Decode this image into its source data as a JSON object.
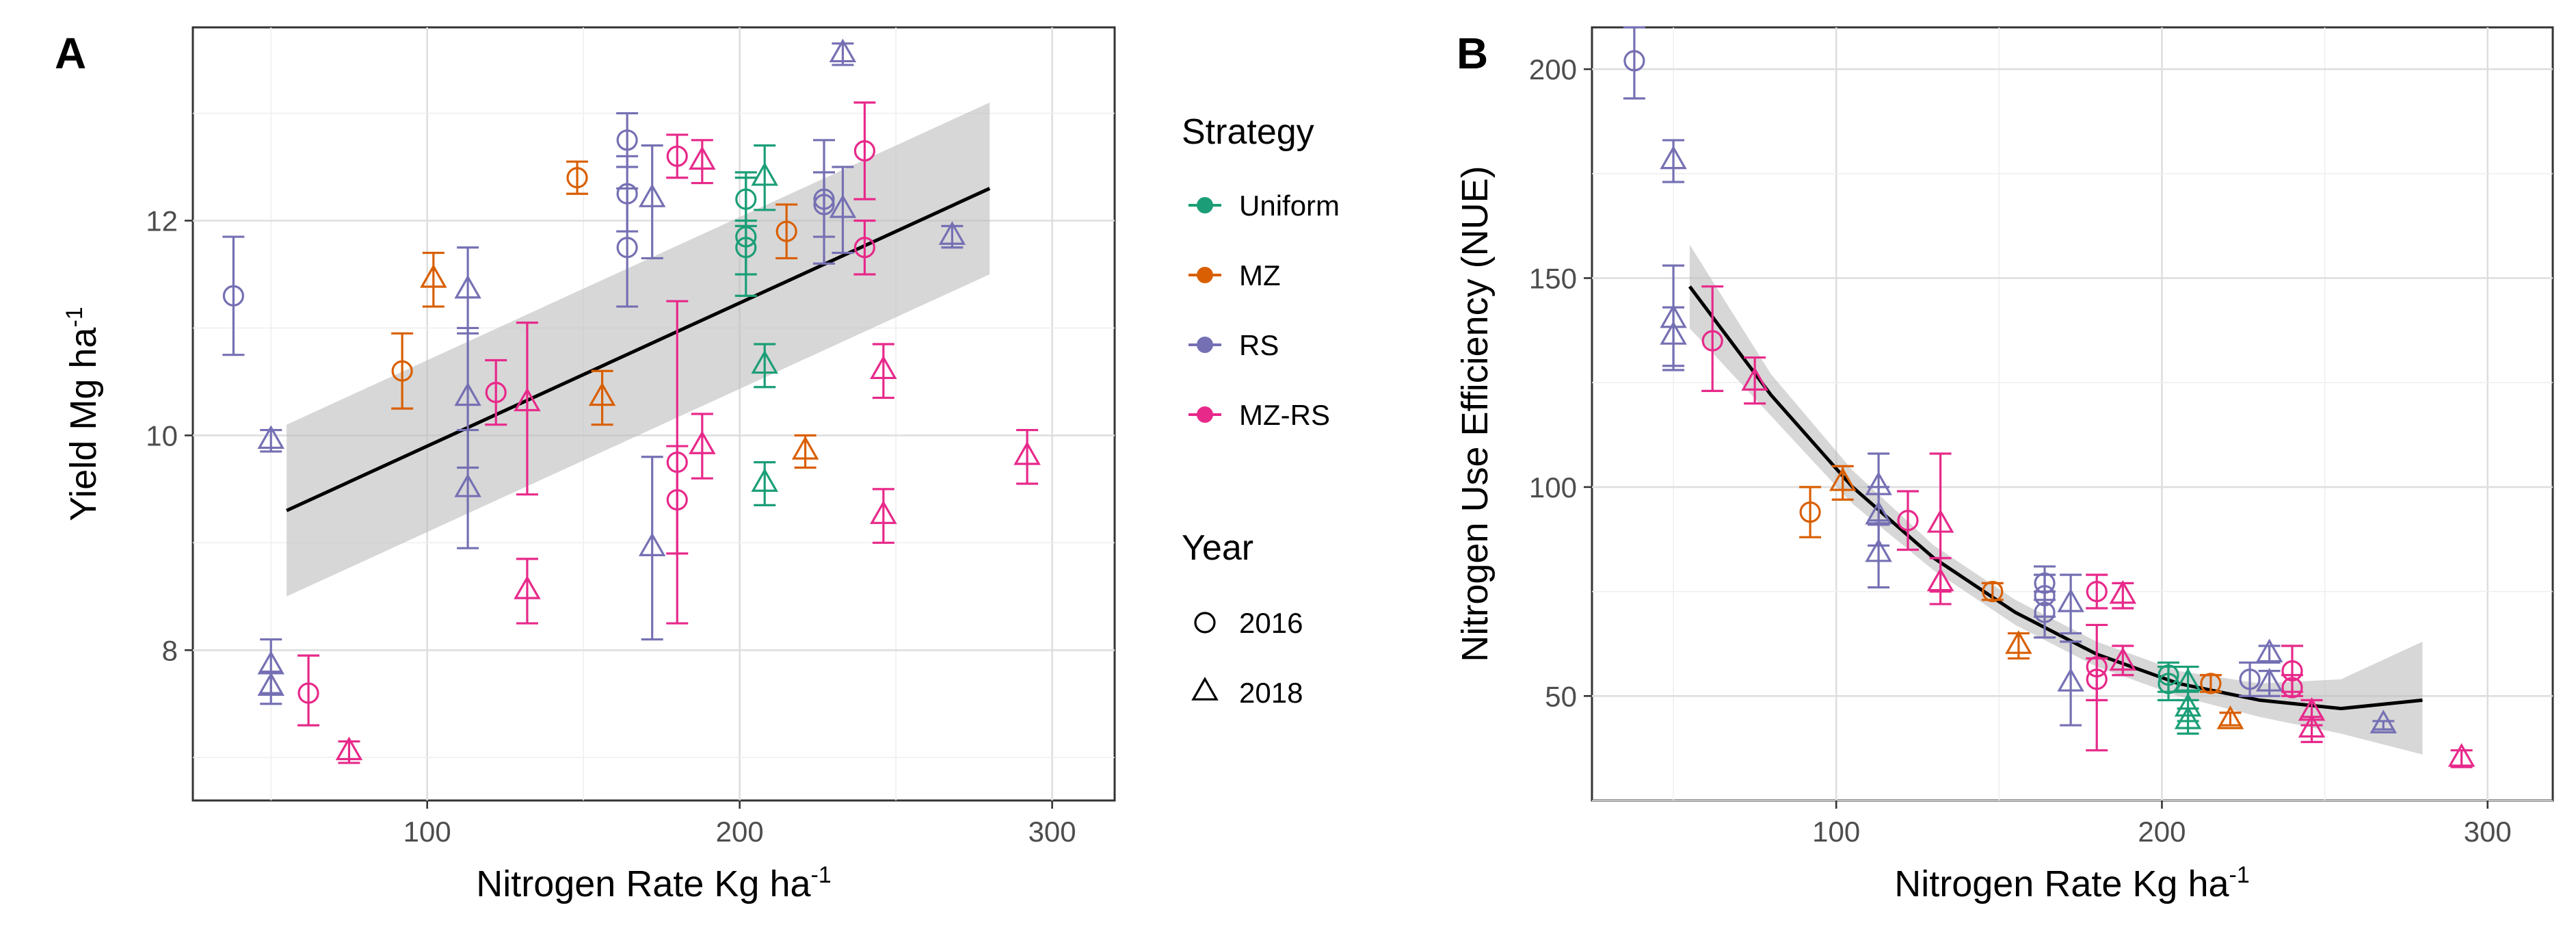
{
  "colors": {
    "Uniform": "#1b9e77",
    "MZ": "#d95f02",
    "RS": "#7570b3",
    "MZ-RS": "#e7298a",
    "fit": "#000000",
    "band": "#bdbdbd"
  },
  "legend": {
    "strategy_title": "Strategy",
    "strategies": [
      "Uniform",
      "MZ",
      "RS",
      "MZ-RS"
    ],
    "year_title": "Year",
    "years": [
      "2016",
      "2018"
    ]
  },
  "chart_data": [
    {
      "type": "scatter",
      "panel": "A",
      "title": "",
      "xlabel": "Nitrogen Rate Kg ha",
      "xlabel_sup": "-1",
      "ylabel": "Yield Mg ha",
      "ylabel_sup": "-1",
      "xlim": [
        25,
        320
      ],
      "ylim": [
        6.6,
        13.8
      ],
      "xticks": [
        100,
        200,
        300
      ],
      "yticks": [
        8,
        10,
        12
      ],
      "xtick_labels": [
        "100",
        "200",
        "300"
      ],
      "ytick_labels": [
        "8",
        "10",
        "12"
      ],
      "legend_position": "right",
      "fit": {
        "kind": "linear",
        "xrange": [
          55,
          280
        ],
        "y_start": 9.3,
        "y_end": 12.3,
        "band_lower": [
          8.5,
          11.5
        ],
        "band_upper": [
          10.1,
          13.1
        ]
      },
      "points": [
        {
          "strategy": "RS",
          "year": "2016",
          "x": 38,
          "y": 11.3,
          "ymin": 10.75,
          "ymax": 11.85
        },
        {
          "strategy": "RS",
          "year": "2018",
          "x": 50,
          "y": 9.95,
          "ymin": 9.85,
          "ymax": 10.05
        },
        {
          "strategy": "RS",
          "year": "2018",
          "x": 50,
          "y": 7.85,
          "ymin": 7.6,
          "ymax": 8.1
        },
        {
          "strategy": "RS",
          "year": "2018",
          "x": 50,
          "y": 7.65,
          "ymin": 7.5,
          "ymax": 7.8
        },
        {
          "strategy": "MZ-RS",
          "year": "2016",
          "x": 62,
          "y": 7.6,
          "ymin": 7.3,
          "ymax": 7.95
        },
        {
          "strategy": "MZ-RS",
          "year": "2018",
          "x": 75,
          "y": 7.05,
          "ymin": 6.95,
          "ymax": 7.15
        },
        {
          "strategy": "MZ",
          "year": "2016",
          "x": 92,
          "y": 10.6,
          "ymin": 10.25,
          "ymax": 10.95
        },
        {
          "strategy": "MZ",
          "year": "2018",
          "x": 102,
          "y": 11.45,
          "ymin": 11.2,
          "ymax": 11.7
        },
        {
          "strategy": "RS",
          "year": "2018",
          "x": 113,
          "y": 11.35,
          "ymin": 10.95,
          "ymax": 11.75
        },
        {
          "strategy": "RS",
          "year": "2018",
          "x": 113,
          "y": 10.35,
          "ymin": 9.7,
          "ymax": 11.0
        },
        {
          "strategy": "RS",
          "year": "2018",
          "x": 113,
          "y": 9.5,
          "ymin": 8.95,
          "ymax": 10.05
        },
        {
          "strategy": "MZ-RS",
          "year": "2016",
          "x": 122,
          "y": 10.4,
          "ymin": 10.1,
          "ymax": 10.7
        },
        {
          "strategy": "MZ-RS",
          "year": "2018",
          "x": 132,
          "y": 10.3,
          "ymin": 9.45,
          "ymax": 11.05
        },
        {
          "strategy": "MZ-RS",
          "year": "2018",
          "x": 132,
          "y": 8.55,
          "ymin": 8.25,
          "ymax": 8.85
        },
        {
          "strategy": "MZ",
          "year": "2016",
          "x": 148,
          "y": 12.4,
          "ymin": 12.25,
          "ymax": 12.55
        },
        {
          "strategy": "MZ",
          "year": "2018",
          "x": 156,
          "y": 10.35,
          "ymin": 10.1,
          "ymax": 10.6
        },
        {
          "strategy": "RS",
          "year": "2016",
          "x": 164,
          "y": 12.75,
          "ymin": 12.5,
          "ymax": 13.0
        },
        {
          "strategy": "RS",
          "year": "2016",
          "x": 164,
          "y": 12.25,
          "ymin": 11.9,
          "ymax": 12.6
        },
        {
          "strategy": "RS",
          "year": "2016",
          "x": 164,
          "y": 11.75,
          "ymin": 11.2,
          "ymax": 12.3
        },
        {
          "strategy": "RS",
          "year": "2018",
          "x": 172,
          "y": 12.2,
          "ymin": 11.65,
          "ymax": 12.7
        },
        {
          "strategy": "RS",
          "year": "2018",
          "x": 172,
          "y": 8.95,
          "ymin": 8.1,
          "ymax": 9.8
        },
        {
          "strategy": "MZ-RS",
          "year": "2016",
          "x": 180,
          "y": 12.6,
          "ymin": 12.4,
          "ymax": 12.8
        },
        {
          "strategy": "MZ-RS",
          "year": "2016",
          "x": 180,
          "y": 9.75,
          "ymin": 8.25,
          "ymax": 11.25
        },
        {
          "strategy": "MZ-RS",
          "year": "2016",
          "x": 180,
          "y": 9.4,
          "ymin": 8.9,
          "ymax": 9.9
        },
        {
          "strategy": "MZ-RS",
          "year": "2018",
          "x": 188,
          "y": 12.55,
          "ymin": 12.35,
          "ymax": 12.75
        },
        {
          "strategy": "MZ-RS",
          "year": "2018",
          "x": 188,
          "y": 9.9,
          "ymin": 9.6,
          "ymax": 10.2
        },
        {
          "strategy": "Uniform",
          "year": "2016",
          "x": 202,
          "y": 12.2,
          "ymin": 11.95,
          "ymax": 12.45
        },
        {
          "strategy": "Uniform",
          "year": "2016",
          "x": 202,
          "y": 11.85,
          "ymin": 11.3,
          "ymax": 12.4
        },
        {
          "strategy": "Uniform",
          "year": "2016",
          "x": 202,
          "y": 11.75,
          "ymin": 11.5,
          "ymax": 12.0
        },
        {
          "strategy": "Uniform",
          "year": "2018",
          "x": 208,
          "y": 12.4,
          "ymin": 12.1,
          "ymax": 12.7
        },
        {
          "strategy": "Uniform",
          "year": "2018",
          "x": 208,
          "y": 10.65,
          "ymin": 10.45,
          "ymax": 10.85
        },
        {
          "strategy": "Uniform",
          "year": "2018",
          "x": 208,
          "y": 9.55,
          "ymin": 9.35,
          "ymax": 9.75
        },
        {
          "strategy": "MZ",
          "year": "2016",
          "x": 215,
          "y": 11.9,
          "ymin": 11.65,
          "ymax": 12.15
        },
        {
          "strategy": "MZ",
          "year": "2018",
          "x": 221,
          "y": 9.85,
          "ymin": 9.7,
          "ymax": 10.0
        },
        {
          "strategy": "RS",
          "year": "2016",
          "x": 227,
          "y": 12.15,
          "ymin": 11.85,
          "ymax": 12.45
        },
        {
          "strategy": "RS",
          "year": "2016",
          "x": 227,
          "y": 12.2,
          "ymin": 11.6,
          "ymax": 12.75
        },
        {
          "strategy": "RS",
          "year": "2018",
          "x": 233,
          "y": 13.55,
          "ymin": 13.45,
          "ymax": 13.65
        },
        {
          "strategy": "RS",
          "year": "2018",
          "x": 233,
          "y": 12.1,
          "ymin": 11.7,
          "ymax": 12.5
        },
        {
          "strategy": "MZ-RS",
          "year": "2016",
          "x": 240,
          "y": 12.65,
          "ymin": 12.2,
          "ymax": 13.1
        },
        {
          "strategy": "MZ-RS",
          "year": "2016",
          "x": 240,
          "y": 11.75,
          "ymin": 11.5,
          "ymax": 12.0
        },
        {
          "strategy": "MZ-RS",
          "year": "2018",
          "x": 246,
          "y": 10.6,
          "ymin": 10.35,
          "ymax": 10.85
        },
        {
          "strategy": "MZ-RS",
          "year": "2018",
          "x": 246,
          "y": 9.25,
          "ymin": 9.0,
          "ymax": 9.5
        },
        {
          "strategy": "RS",
          "year": "2018",
          "x": 268,
          "y": 11.85,
          "ymin": 11.75,
          "ymax": 11.95
        },
        {
          "strategy": "MZ-RS",
          "year": "2018",
          "x": 292,
          "y": 9.8,
          "ymin": 9.55,
          "ymax": 10.05
        }
      ]
    },
    {
      "type": "scatter",
      "panel": "B",
      "title": "",
      "xlabel": "Nitrogen Rate Kg ha",
      "xlabel_sup": "-1",
      "ylabel": "Nitrogen Use Efficiency (NUE)",
      "ylabel_sup": "",
      "xlim": [
        25,
        320
      ],
      "ylim": [
        25,
        210
      ],
      "xticks": [
        100,
        200,
        300
      ],
      "yticks": [
        50,
        100,
        150,
        200
      ],
      "xtick_labels": [
        "100",
        "200",
        "300"
      ],
      "ytick_labels": [
        "50",
        "100",
        "150",
        "200"
      ],
      "fit": {
        "kind": "quadratic",
        "xrange": [
          55,
          280
        ],
        "curve": [
          [
            55,
            148
          ],
          [
            80,
            122
          ],
          [
            105,
            100
          ],
          [
            130,
            83
          ],
          [
            155,
            70
          ],
          [
            180,
            60
          ],
          [
            205,
            53
          ],
          [
            230,
            49
          ],
          [
            255,
            47
          ],
          [
            280,
            49
          ]
        ],
        "band_lower": [
          [
            55,
            138
          ],
          [
            80,
            117
          ],
          [
            105,
            96
          ],
          [
            130,
            80
          ],
          [
            155,
            67
          ],
          [
            180,
            57
          ],
          [
            205,
            50
          ],
          [
            230,
            45
          ],
          [
            255,
            41
          ],
          [
            280,
            36
          ]
        ],
        "band_upper": [
          [
            55,
            158
          ],
          [
            80,
            127
          ],
          [
            105,
            104
          ],
          [
            130,
            86
          ],
          [
            155,
            73
          ],
          [
            180,
            63
          ],
          [
            205,
            56
          ],
          [
            230,
            53
          ],
          [
            255,
            54
          ],
          [
            280,
            63
          ]
        ]
      },
      "points": [
        {
          "strategy": "RS",
          "year": "2016",
          "x": 38,
          "y": 202,
          "ymin": 193,
          "ymax": 210
        },
        {
          "strategy": "RS",
          "year": "2018",
          "x": 50,
          "y": 178,
          "ymin": 173,
          "ymax": 183
        },
        {
          "strategy": "RS",
          "year": "2018",
          "x": 50,
          "y": 140,
          "ymin": 129,
          "ymax": 153
        },
        {
          "strategy": "RS",
          "year": "2018",
          "x": 50,
          "y": 136,
          "ymin": 128,
          "ymax": 143
        },
        {
          "strategy": "MZ-RS",
          "year": "2016",
          "x": 62,
          "y": 135,
          "ymin": 123,
          "ymax": 148
        },
        {
          "strategy": "MZ-RS",
          "year": "2018",
          "x": 75,
          "y": 125,
          "ymin": 120,
          "ymax": 131
        },
        {
          "strategy": "MZ",
          "year": "2016",
          "x": 92,
          "y": 94,
          "ymin": 88,
          "ymax": 100
        },
        {
          "strategy": "MZ",
          "year": "2018",
          "x": 102,
          "y": 101,
          "ymin": 97,
          "ymax": 105
        },
        {
          "strategy": "RS",
          "year": "2018",
          "x": 113,
          "y": 100,
          "ymin": 91,
          "ymax": 108
        },
        {
          "strategy": "RS",
          "year": "2018",
          "x": 113,
          "y": 93,
          "ymin": 86,
          "ymax": 100
        },
        {
          "strategy": "RS",
          "year": "2018",
          "x": 113,
          "y": 84,
          "ymin": 76,
          "ymax": 92
        },
        {
          "strategy": "MZ-RS",
          "year": "2016",
          "x": 122,
          "y": 92,
          "ymin": 85,
          "ymax": 99
        },
        {
          "strategy": "MZ-RS",
          "year": "2018",
          "x": 132,
          "y": 91,
          "ymin": 75,
          "ymax": 108
        },
        {
          "strategy": "MZ-RS",
          "year": "2018",
          "x": 132,
          "y": 77,
          "ymin": 72,
          "ymax": 83
        },
        {
          "strategy": "MZ",
          "year": "2016",
          "x": 148,
          "y": 75,
          "ymin": 73,
          "ymax": 77
        },
        {
          "strategy": "MZ",
          "year": "2018",
          "x": 156,
          "y": 62,
          "ymin": 59,
          "ymax": 65
        },
        {
          "strategy": "RS",
          "year": "2016",
          "x": 164,
          "y": 77,
          "ymin": 73,
          "ymax": 81
        },
        {
          "strategy": "RS",
          "year": "2016",
          "x": 164,
          "y": 74,
          "ymin": 69,
          "ymax": 79
        },
        {
          "strategy": "RS",
          "year": "2016",
          "x": 164,
          "y": 70,
          "ymin": 64,
          "ymax": 75
        },
        {
          "strategy": "RS",
          "year": "2018",
          "x": 172,
          "y": 72,
          "ymin": 65,
          "ymax": 79
        },
        {
          "strategy": "RS",
          "year": "2018",
          "x": 172,
          "y": 53,
          "ymin": 43,
          "ymax": 63
        },
        {
          "strategy": "MZ-RS",
          "year": "2016",
          "x": 180,
          "y": 75,
          "ymin": 71,
          "ymax": 79
        },
        {
          "strategy": "MZ-RS",
          "year": "2016",
          "x": 180,
          "y": 57,
          "ymin": 37,
          "ymax": 67
        },
        {
          "strategy": "MZ-RS",
          "year": "2016",
          "x": 180,
          "y": 54,
          "ymin": 49,
          "ymax": 59
        },
        {
          "strategy": "MZ-RS",
          "year": "2018",
          "x": 188,
          "y": 74,
          "ymin": 71,
          "ymax": 77
        },
        {
          "strategy": "MZ-RS",
          "year": "2018",
          "x": 188,
          "y": 58,
          "ymin": 55,
          "ymax": 62
        },
        {
          "strategy": "Uniform",
          "year": "2016",
          "x": 202,
          "y": 55,
          "ymin": 51,
          "ymax": 58
        },
        {
          "strategy": "Uniform",
          "year": "2016",
          "x": 202,
          "y": 53,
          "ymin": 49,
          "ymax": 57
        },
        {
          "strategy": "Uniform",
          "year": "2018",
          "x": 208,
          "y": 53,
          "ymin": 49,
          "ymax": 57
        },
        {
          "strategy": "Uniform",
          "year": "2018",
          "x": 208,
          "y": 47,
          "ymin": 44,
          "ymax": 51
        },
        {
          "strategy": "Uniform",
          "year": "2018",
          "x": 208,
          "y": 44,
          "ymin": 41,
          "ymax": 47
        },
        {
          "strategy": "MZ",
          "year": "2016",
          "x": 215,
          "y": 53,
          "ymin": 51,
          "ymax": 55
        },
        {
          "strategy": "MZ",
          "year": "2018",
          "x": 221,
          "y": 44,
          "ymin": 43,
          "ymax": 46
        },
        {
          "strategy": "RS",
          "year": "2016",
          "x": 227,
          "y": 54,
          "ymin": 50,
          "ymax": 58
        },
        {
          "strategy": "RS",
          "year": "2018",
          "x": 233,
          "y": 60,
          "ymin": 58,
          "ymax": 62
        },
        {
          "strategy": "RS",
          "year": "2018",
          "x": 233,
          "y": 53,
          "ymin": 50,
          "ymax": 56
        },
        {
          "strategy": "MZ-RS",
          "year": "2016",
          "x": 240,
          "y": 56,
          "ymin": 51,
          "ymax": 62
        },
        {
          "strategy": "MZ-RS",
          "year": "2016",
          "x": 240,
          "y": 52,
          "ymin": 50,
          "ymax": 55
        },
        {
          "strategy": "MZ-RS",
          "year": "2018",
          "x": 246,
          "y": 46,
          "ymin": 43,
          "ymax": 49
        },
        {
          "strategy": "MZ-RS",
          "year": "2018",
          "x": 246,
          "y": 42,
          "ymin": 39,
          "ymax": 45
        },
        {
          "strategy": "RS",
          "year": "2018",
          "x": 268,
          "y": 43,
          "ymin": 42,
          "ymax": 44
        },
        {
          "strategy": "MZ-RS",
          "year": "2018",
          "x": 292,
          "y": 35,
          "ymin": 33,
          "ymax": 37
        }
      ]
    }
  ]
}
